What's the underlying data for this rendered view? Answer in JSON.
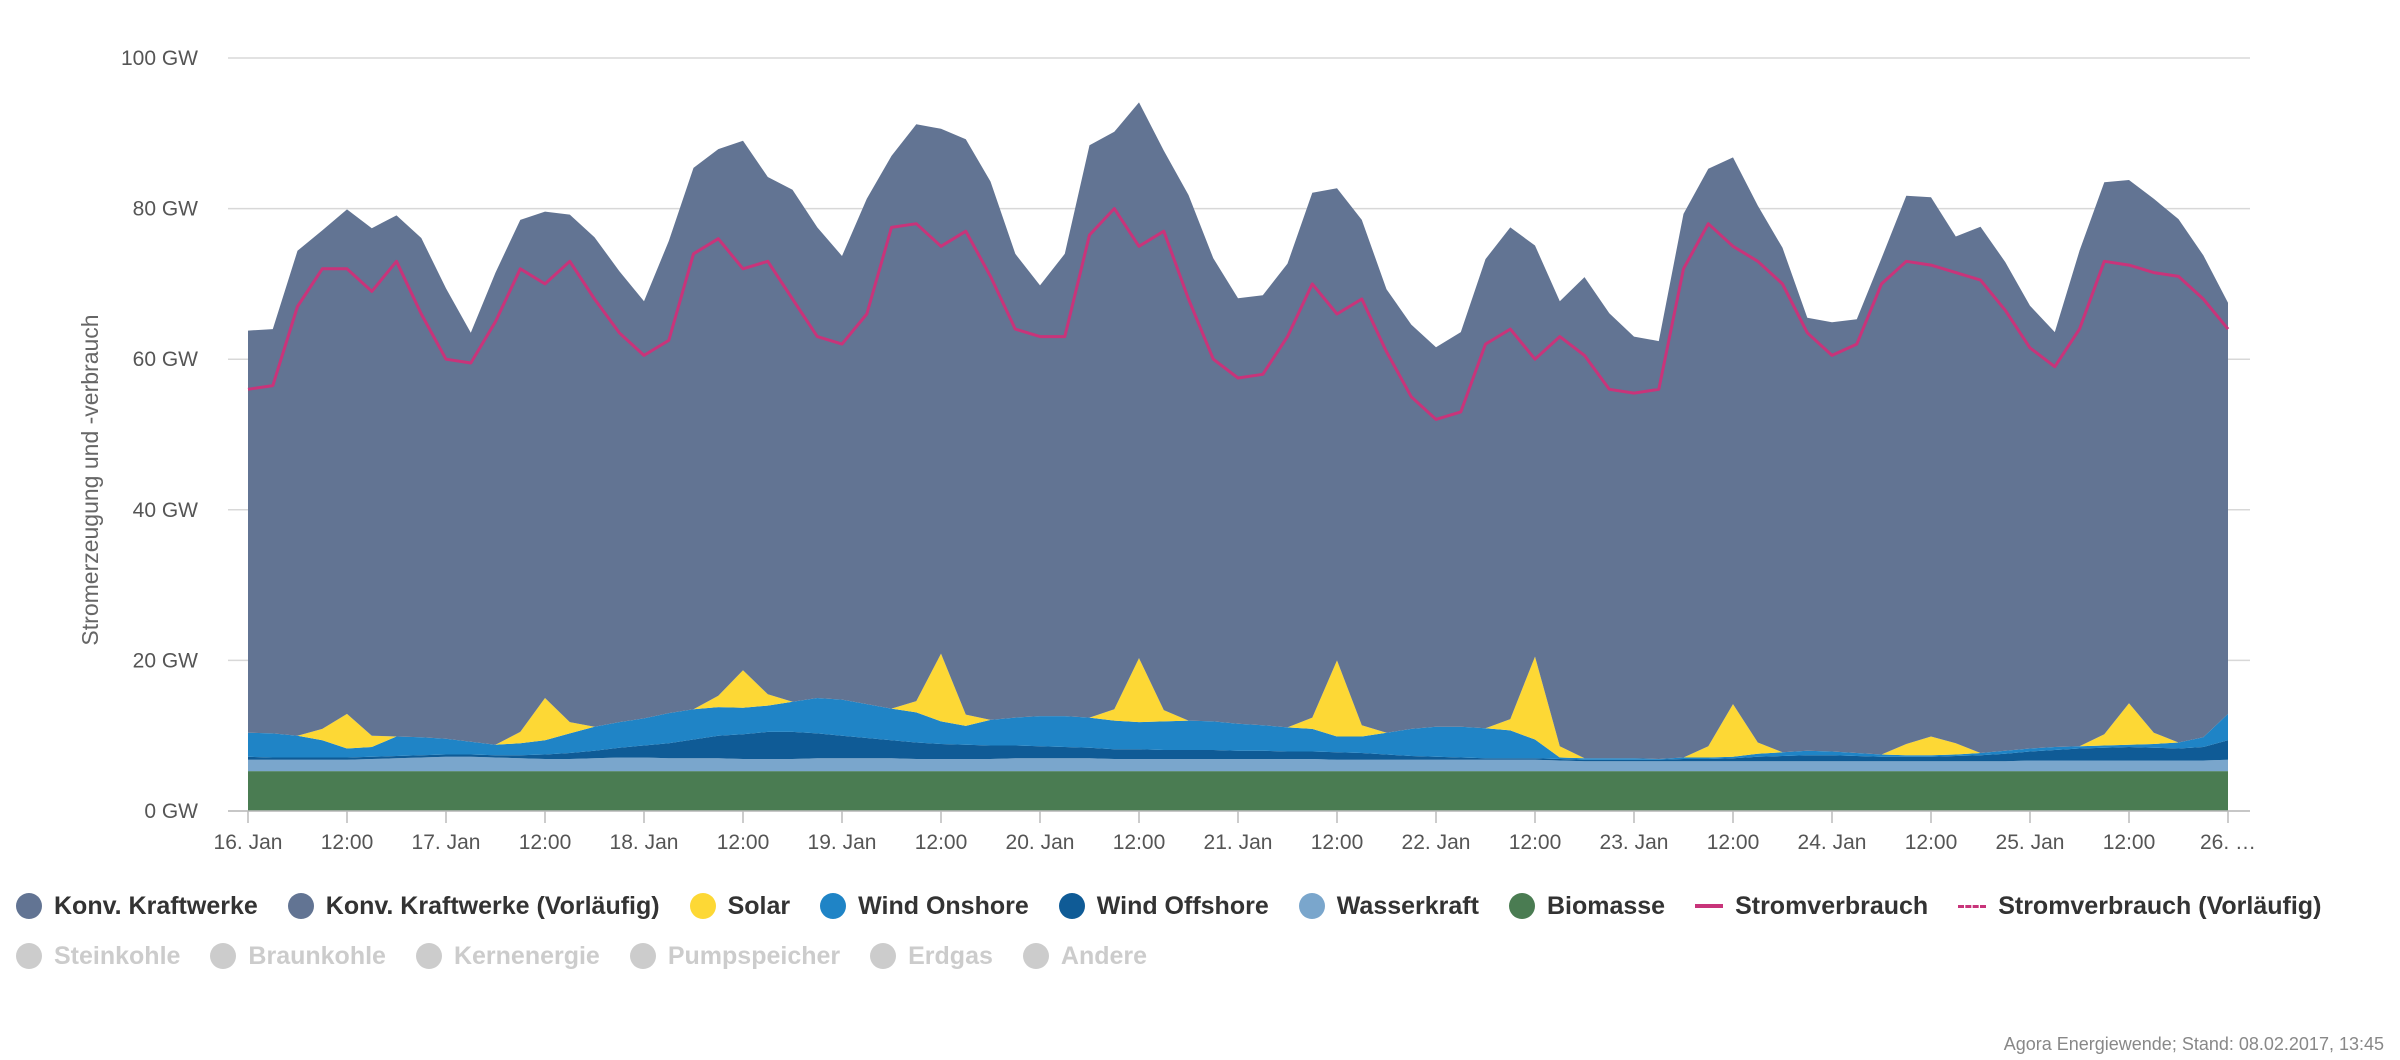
{
  "chart_data": {
    "type": "area",
    "stacked": true,
    "ylabel": "Stromerzeugung und -verbrauch",
    "ylim": [
      0,
      100
    ],
    "y_ticks": [
      "0 GW",
      "20 GW",
      "40 GW",
      "60 GW",
      "80 GW",
      "100 GW"
    ],
    "y_tick_values": [
      0,
      20,
      40,
      60,
      80,
      100
    ],
    "x_start": "2017-01-16T00:00",
    "x_end": "2017-01-26T00:00",
    "x_ticks": [
      "16. Jan",
      "12:00",
      "17. Jan",
      "12:00",
      "18. Jan",
      "12:00",
      "19. Jan",
      "12:00",
      "20. Jan",
      "12:00",
      "21. Jan",
      "12:00",
      "22. Jan",
      "12:00",
      "23. Jan",
      "12:00",
      "24. Jan",
      "12:00",
      "25. Jan",
      "12:00",
      "26. …"
    ],
    "x_tick_times": [
      "2017-01-16T00:00",
      "2017-01-16T12:00",
      "2017-01-17T00:00",
      "2017-01-17T12:00",
      "2017-01-18T00:00",
      "2017-01-18T12:00",
      "2017-01-19T00:00",
      "2017-01-19T12:00",
      "2017-01-20T00:00",
      "2017-01-20T12:00",
      "2017-01-21T00:00",
      "2017-01-21T12:00",
      "2017-01-22T00:00",
      "2017-01-22T12:00",
      "2017-01-23T00:00",
      "2017-01-23T12:00",
      "2017-01-24T00:00",
      "2017-01-24T12:00",
      "2017-01-25T00:00",
      "2017-01-25T12:00",
      "2017-01-26T00:00"
    ],
    "x": [
      "2017-01-16T00:00",
      "2017-01-16T03:00",
      "2017-01-16T06:00",
      "2017-01-16T09:00",
      "2017-01-16T12:00",
      "2017-01-16T15:00",
      "2017-01-16T18:00",
      "2017-01-16T21:00",
      "2017-01-17T00:00",
      "2017-01-17T03:00",
      "2017-01-17T06:00",
      "2017-01-17T09:00",
      "2017-01-17T12:00",
      "2017-01-17T15:00",
      "2017-01-17T18:00",
      "2017-01-17T21:00",
      "2017-01-18T00:00",
      "2017-01-18T03:00",
      "2017-01-18T06:00",
      "2017-01-18T09:00",
      "2017-01-18T12:00",
      "2017-01-18T15:00",
      "2017-01-18T18:00",
      "2017-01-18T21:00",
      "2017-01-19T00:00",
      "2017-01-19T03:00",
      "2017-01-19T06:00",
      "2017-01-19T09:00",
      "2017-01-19T12:00",
      "2017-01-19T15:00",
      "2017-01-19T18:00",
      "2017-01-19T21:00",
      "2017-01-20T00:00",
      "2017-01-20T03:00",
      "2017-01-20T06:00",
      "2017-01-20T09:00",
      "2017-01-20T12:00",
      "2017-01-20T15:00",
      "2017-01-20T18:00",
      "2017-01-20T21:00",
      "2017-01-21T00:00",
      "2017-01-21T03:00",
      "2017-01-21T06:00",
      "2017-01-21T09:00",
      "2017-01-21T12:00",
      "2017-01-21T15:00",
      "2017-01-21T18:00",
      "2017-01-21T21:00",
      "2017-01-22T00:00",
      "2017-01-22T03:00",
      "2017-01-22T06:00",
      "2017-01-22T09:00",
      "2017-01-22T12:00",
      "2017-01-22T15:00",
      "2017-01-22T18:00",
      "2017-01-22T21:00",
      "2017-01-23T00:00",
      "2017-01-23T03:00",
      "2017-01-23T06:00",
      "2017-01-23T09:00",
      "2017-01-23T12:00",
      "2017-01-23T15:00",
      "2017-01-23T18:00",
      "2017-01-23T21:00",
      "2017-01-24T00:00",
      "2017-01-24T03:00",
      "2017-01-24T06:00",
      "2017-01-24T09:00",
      "2017-01-24T12:00",
      "2017-01-24T15:00",
      "2017-01-24T18:00",
      "2017-01-24T21:00",
      "2017-01-25T00:00",
      "2017-01-25T03:00",
      "2017-01-25T06:00",
      "2017-01-25T09:00",
      "2017-01-25T12:00",
      "2017-01-25T15:00",
      "2017-01-25T18:00",
      "2017-01-25T21:00",
      "2017-01-26T00:00"
    ],
    "series": [
      {
        "name": "Biomasse",
        "type": "area",
        "color": "#4a7c52",
        "values": [
          5.3,
          5.3,
          5.3,
          5.3,
          5.3,
          5.3,
          5.3,
          5.3,
          5.3,
          5.3,
          5.3,
          5.3,
          5.3,
          5.3,
          5.3,
          5.3,
          5.3,
          5.3,
          5.3,
          5.3,
          5.3,
          5.3,
          5.3,
          5.3,
          5.3,
          5.3,
          5.3,
          5.3,
          5.3,
          5.3,
          5.3,
          5.3,
          5.3,
          5.3,
          5.3,
          5.3,
          5.3,
          5.3,
          5.3,
          5.3,
          5.3,
          5.3,
          5.3,
          5.3,
          5.3,
          5.3,
          5.3,
          5.3,
          5.3,
          5.3,
          5.3,
          5.3,
          5.3,
          5.3,
          5.3,
          5.3,
          5.3,
          5.3,
          5.3,
          5.3,
          5.3,
          5.3,
          5.3,
          5.3,
          5.3,
          5.3,
          5.3,
          5.3,
          5.3,
          5.3,
          5.3,
          5.3,
          5.3,
          5.3,
          5.3,
          5.3,
          5.3,
          5.3,
          5.3,
          5.3,
          5.3
        ]
      },
      {
        "name": "Wasserkraft",
        "type": "area",
        "color": "#7aa6cc",
        "values": [
          1.5,
          1.5,
          1.5,
          1.5,
          1.5,
          1.6,
          1.7,
          1.8,
          1.9,
          1.9,
          1.8,
          1.7,
          1.6,
          1.6,
          1.7,
          1.8,
          1.8,
          1.7,
          1.7,
          1.7,
          1.6,
          1.6,
          1.6,
          1.7,
          1.7,
          1.7,
          1.7,
          1.6,
          1.6,
          1.6,
          1.6,
          1.7,
          1.7,
          1.7,
          1.7,
          1.6,
          1.6,
          1.6,
          1.6,
          1.6,
          1.6,
          1.6,
          1.6,
          1.6,
          1.5,
          1.5,
          1.5,
          1.5,
          1.5,
          1.5,
          1.5,
          1.5,
          1.5,
          1.4,
          1.3,
          1.3,
          1.3,
          1.3,
          1.3,
          1.3,
          1.3,
          1.3,
          1.3,
          1.3,
          1.3,
          1.3,
          1.3,
          1.3,
          1.3,
          1.3,
          1.3,
          1.3,
          1.4,
          1.4,
          1.4,
          1.4,
          1.4,
          1.4,
          1.4,
          1.4,
          1.5
        ]
      },
      {
        "name": "Wind Offshore",
        "type": "area",
        "color": "#0f5b96",
        "values": [
          0.4,
          0.3,
          0.3,
          0.3,
          0.3,
          0.3,
          0.3,
          0.3,
          0.3,
          0.3,
          0.3,
          0.4,
          0.6,
          0.8,
          1.0,
          1.3,
          1.6,
          2.0,
          2.5,
          3.0,
          3.3,
          3.6,
          3.6,
          3.3,
          3.0,
          2.7,
          2.4,
          2.2,
          2.0,
          1.9,
          1.8,
          1.7,
          1.6,
          1.5,
          1.4,
          1.3,
          1.3,
          1.2,
          1.2,
          1.2,
          1.1,
          1.1,
          1.0,
          1.0,
          1.0,
          0.9,
          0.7,
          0.5,
          0.4,
          0.3,
          0.2,
          0.2,
          0.2,
          0.2,
          0.2,
          0.2,
          0.2,
          0.2,
          0.3,
          0.3,
          0.4,
          0.6,
          0.7,
          0.8,
          0.8,
          0.7,
          0.6,
          0.6,
          0.6,
          0.7,
          0.8,
          1.0,
          1.2,
          1.4,
          1.6,
          1.7,
          1.8,
          1.7,
          1.6,
          1.8,
          2.6
        ]
      },
      {
        "name": "Wind Onshore",
        "type": "area",
        "color": "#1f84c6",
        "values": [
          3.2,
          3.2,
          2.9,
          2.3,
          1.2,
          1.3,
          2.6,
          2.4,
          2.1,
          1.7,
          1.4,
          1.6,
          1.9,
          2.6,
          3.2,
          3.4,
          3.6,
          4.0,
          4.0,
          3.8,
          3.5,
          3.5,
          4.0,
          4.7,
          4.8,
          4.5,
          4.2,
          4.0,
          3.0,
          2.5,
          3.4,
          3.7,
          4.0,
          4.1,
          4.0,
          3.8,
          3.6,
          3.8,
          3.9,
          3.8,
          3.6,
          3.4,
          3.2,
          3.0,
          2.1,
          2.2,
          2.9,
          3.6,
          4.0,
          4.1,
          4.0,
          3.7,
          2.5,
          0.2,
          0.2,
          0.2,
          0.2,
          0.1,
          0.2,
          0.2,
          0.2,
          0.4,
          0.5,
          0.6,
          0.5,
          0.4,
          0.3,
          0.2,
          0.2,
          0.2,
          0.3,
          0.4,
          0.4,
          0.4,
          0.3,
          0.3,
          0.3,
          0.5,
          0.8,
          1.3,
          3.5
        ]
      },
      {
        "name": "Solar",
        "type": "area",
        "color": "#fdd835",
        "values": [
          0,
          0,
          0,
          1.5,
          4.6,
          1.5,
          0,
          0,
          0,
          0,
          0,
          1.5,
          5.6,
          1.5,
          0,
          0,
          0,
          0,
          0,
          1.5,
          5.0,
          1.5,
          0,
          0,
          0,
          0,
          0,
          1.5,
          9.0,
          1.5,
          0,
          0,
          0,
          0,
          0,
          1.5,
          8.5,
          1.5,
          0,
          0,
          0,
          0,
          0,
          1.5,
          10.1,
          1.5,
          0,
          0,
          0,
          0,
          0,
          1.5,
          11.0,
          1.5,
          0,
          0,
          0,
          0,
          0,
          1.5,
          7.0,
          1.5,
          0,
          0,
          0,
          0,
          0,
          1.5,
          2.5,
          1.5,
          0,
          0,
          0,
          0,
          0,
          1.5,
          5.5,
          1.5,
          0,
          0,
          0
        ]
      },
      {
        "name": "Konv. Kraftwerke",
        "type": "area",
        "color": "#627493",
        "values": [
          53.4,
          53.7,
          64.4,
          66.2,
          67.0,
          67.4,
          69.2,
          66.3,
          59.8,
          54.3,
          62.7,
          68.0,
          64.6,
          67.4,
          65.0,
          59.9,
          55.4,
          62.7,
          71.9,
          72.6,
          70.3,
          68.7,
          68.0,
          62.5,
          58.9,
          67.1,
          73.4,
          76.6,
          69.7,
          76.4,
          71.5,
          61.6,
          57.2,
          61.4,
          76.0,
          76.7,
          73.8,
          74.3,
          69.8,
          61.5,
          56.5,
          57.1,
          61.6,
          69.7,
          62.7,
          67.1,
          58.9,
          53.7,
          50.4,
          52.4,
          62.3,
          65.3,
          54.6,
          59.1,
          63.9,
          59.1,
          56.0,
          55.5,
          72.2,
          76.7,
          72.6,
          71.3,
          67.0,
          57.5,
          57.0,
          57.6,
          65.9,
          72.8,
          71.6,
          67.3,
          69.9,
          64.9,
          58.8,
          55.1,
          65.8,
          73.3,
          69.5,
          70.9,
          69.5,
          64.0,
          54.6
        ]
      },
      {
        "name": "Stromverbrauch",
        "type": "line",
        "color": "#c8347a",
        "values": [
          56.0,
          56.5,
          67.0,
          72.0,
          72.0,
          69.0,
          73.0,
          66.0,
          60.0,
          59.5,
          65.0,
          72.0,
          70.0,
          73.0,
          68.0,
          63.5,
          60.5,
          62.5,
          74.0,
          76.0,
          72.0,
          73.0,
          68.0,
          63.0,
          62.0,
          66.0,
          77.5,
          78.0,
          75.0,
          77.0,
          71.0,
          64.0,
          63.0,
          63.0,
          76.5,
          80.0,
          75.0,
          77.0,
          68.0,
          60.0,
          57.5,
          58.0,
          63.0,
          70.0,
          66.0,
          68.0,
          61.0,
          55.0,
          52.0,
          53.0,
          62.0,
          64.0,
          60.0,
          63.0,
          60.5,
          56.0,
          55.5,
          56.0,
          72.0,
          78.0,
          75.0,
          73.0,
          70.0,
          63.5,
          60.5,
          62.0,
          70.0,
          73.0,
          72.5,
          71.5,
          70.5,
          66.5,
          61.5,
          59.0,
          64.0,
          73.0,
          72.5,
          71.5,
          71.0,
          68.0,
          64.0
        ]
      }
    ],
    "legend": [
      {
        "label": "Konv. Kraftwerke",
        "symbol": "dot",
        "color": "#627493",
        "visible": true
      },
      {
        "label": "Konv. Kraftwerke (Vorläufig)",
        "symbol": "dot",
        "color": "#627493",
        "visible": true
      },
      {
        "label": "Solar",
        "symbol": "dot",
        "color": "#fdd835",
        "visible": true
      },
      {
        "label": "Wind Onshore",
        "symbol": "dot",
        "color": "#1f84c6",
        "visible": true
      },
      {
        "label": "Wind Offshore",
        "symbol": "dot",
        "color": "#0f5b96",
        "visible": true
      },
      {
        "label": "Wasserkraft",
        "symbol": "dot",
        "color": "#7aa6cc",
        "visible": true
      },
      {
        "label": "Biomasse",
        "symbol": "dot",
        "color": "#4a7c52",
        "visible": true
      },
      {
        "label": "Stromverbrauch",
        "symbol": "line",
        "color": "#c8347a",
        "visible": true
      },
      {
        "label": "Stromverbrauch (Vorläufig)",
        "symbol": "dashed-line",
        "color": "#c8347a",
        "visible": true
      },
      {
        "label": "Steinkohle",
        "symbol": "dot",
        "color": "#cccccc",
        "visible": false
      },
      {
        "label": "Braunkohle",
        "symbol": "dot",
        "color": "#cccccc",
        "visible": false
      },
      {
        "label": "Kernenergie",
        "symbol": "dot",
        "color": "#cccccc",
        "visible": false
      },
      {
        "label": "Pumpspeicher",
        "symbol": "dot",
        "color": "#cccccc",
        "visible": false
      },
      {
        "label": "Erdgas",
        "symbol": "dot",
        "color": "#cccccc",
        "visible": false
      },
      {
        "label": "Andere",
        "symbol": "dot",
        "color": "#cccccc",
        "visible": false
      }
    ],
    "grid": true,
    "legend_position": "bottom"
  },
  "credit": "Agora Energiewende; Stand: 08.02.2017, 13:45"
}
